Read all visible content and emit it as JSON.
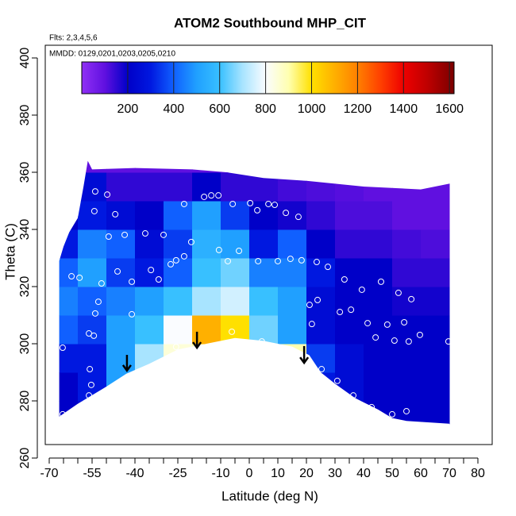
{
  "chart_data": {
    "type": "heatmap",
    "title": "ATOM2 Southbound MHP_CIT",
    "annotations": [
      "Flts: 2,3,4,5,6",
      "MMDD: 0129,0201,0203,0205,0210"
    ],
    "xlabel": "Latitude (deg N)",
    "ylabel": "Theta (C)",
    "xlim": [
      -70,
      80
    ],
    "ylim": [
      260,
      400
    ],
    "xticks": [
      -70,
      -55,
      -40,
      -25,
      -10,
      0,
      10,
      20,
      30,
      40,
      50,
      60,
      70,
      80
    ],
    "xminor_ticks": [
      -65,
      -60,
      -50,
      -45,
      -35,
      -30,
      -20,
      -15,
      -5,
      5,
      15,
      25,
      35,
      45,
      55,
      65,
      75
    ],
    "yticks": [
      260,
      280,
      300,
      320,
      340,
      360,
      380,
      400
    ],
    "clim": [
      0,
      1620
    ],
    "cticks": [
      200,
      400,
      600,
      800,
      1000,
      1200,
      1400,
      1600
    ],
    "colorscale": [
      [
        0,
        "#9030f5"
      ],
      [
        100,
        "#6010e0"
      ],
      [
        200,
        "#0000c8"
      ],
      [
        300,
        "#0018e0"
      ],
      [
        400,
        "#1060ff"
      ],
      [
        500,
        "#20a0ff"
      ],
      [
        600,
        "#38c0ff"
      ],
      [
        700,
        "#a8e4ff"
      ],
      [
        800,
        "#fafcff"
      ],
      [
        900,
        "#ffffb0"
      ],
      [
        1000,
        "#ffe000"
      ],
      [
        1100,
        "#ffb000"
      ],
      [
        1200,
        "#ff8000"
      ],
      [
        1300,
        "#ff4000"
      ],
      [
        1400,
        "#ee0000"
      ],
      [
        1500,
        "#c00000"
      ],
      [
        1620,
        "#7a0000"
      ]
    ],
    "x_edges": [
      -70,
      -60,
      -50,
      -40,
      -30,
      -20,
      -10,
      0,
      10,
      20,
      30,
      40,
      50,
      60,
      70
    ],
    "y_edges": [
      270,
      280,
      290,
      300,
      310,
      320,
      330,
      340,
      350,
      360,
      370
    ],
    "z": [
      [
        200,
        250,
        400,
        500,
        600,
        700,
        700,
        700,
        600,
        250,
        200,
        200,
        200,
        200
      ],
      [
        200,
        300,
        500,
        600,
        750,
        850,
        850,
        850,
        800,
        300,
        250,
        200,
        200,
        200
      ],
      [
        300,
        300,
        500,
        700,
        850,
        900,
        850,
        900,
        900,
        350,
        250,
        200,
        200,
        200
      ],
      [
        400,
        350,
        500,
        600,
        800,
        1100,
        1000,
        650,
        500,
        250,
        200,
        200,
        200,
        200
      ],
      [
        450,
        400,
        450,
        500,
        600,
        700,
        750,
        600,
        500,
        250,
        200,
        200,
        180,
        180
      ],
      [
        400,
        500,
        350,
        300,
        400,
        600,
        650,
        450,
        450,
        300,
        200,
        200,
        150,
        150
      ],
      [
        300,
        450,
        400,
        250,
        350,
        550,
        500,
        300,
        400,
        200,
        150,
        150,
        130,
        120
      ],
      [
        200,
        300,
        250,
        200,
        400,
        500,
        350,
        200,
        180,
        150,
        120,
        120,
        100,
        100
      ],
      [
        200,
        250,
        150,
        150,
        150,
        200,
        150,
        150,
        130,
        120,
        110,
        100,
        100,
        100
      ],
      [
        100,
        100,
        100,
        100,
        100,
        100,
        100,
        100,
        100,
        100,
        100,
        100,
        100,
        100
      ]
    ],
    "domain": [
      [
        -66.5,
        274.5
      ],
      [
        -66.5,
        329
      ],
      [
        -65,
        334
      ],
      [
        -63,
        339
      ],
      [
        -60,
        344
      ],
      [
        -58,
        355
      ],
      [
        -56.5,
        364
      ],
      [
        -55,
        361
      ],
      [
        -40,
        361.5
      ],
      [
        -20,
        361
      ],
      [
        -8,
        360
      ],
      [
        5,
        358
      ],
      [
        20,
        357
      ],
      [
        40,
        355
      ],
      [
        60,
        354
      ],
      [
        70,
        356
      ],
      [
        71,
        356
      ],
      [
        71,
        270
      ],
      [
        70,
        272
      ],
      [
        55,
        273
      ],
      [
        50,
        274
      ],
      [
        45,
        277
      ],
      [
        37,
        281
      ],
      [
        30,
        286
      ],
      [
        25,
        290
      ],
      [
        21,
        296
      ],
      [
        15,
        299
      ],
      [
        5,
        301
      ],
      [
        -5,
        302
      ],
      [
        -15,
        300
      ],
      [
        -25,
        298
      ],
      [
        -35,
        293
      ],
      [
        -43,
        289.5
      ],
      [
        -50,
        285
      ],
      [
        -60,
        279
      ]
    ],
    "points": {
      "color": "#ffffff",
      "x": [
        -53.9,
        -49.7,
        -54.2,
        -46.9,
        -65,
        -49.2,
        -43.6,
        -36.4,
        -30,
        -22.8,
        -15.8,
        -13.3,
        -10.8,
        -5.8,
        0.3,
        2.8,
        6.7,
        8.9,
        12.8,
        17.2,
        -10.6,
        -3.6,
        -7.5,
        3.1,
        10,
        14.4,
        18.3,
        23.6,
        27.5,
        33.3,
        46.1,
        39.4,
        52.2,
        56.7,
        21.1,
        23.9,
        31.7,
        35.6,
        41.4,
        48.3,
        54.2,
        59.7,
        50.8,
        44.2,
        55.8,
        69.7,
        21.9,
        25.3,
        30.8,
        36.4,
        42.8,
        50,
        55,
        -55.8,
        -55.3,
        -56.1,
        -65.3,
        -65.3,
        -56.1,
        -53.9,
        -52.8,
        -51.7,
        -59.4,
        -62.2,
        -46.1,
        -41.1,
        -34.4,
        -31.7,
        -27.5,
        -25.6,
        -22.8,
        -20.3,
        -41.1,
        -54.4,
        4.4,
        11.4,
        -6.1,
        -25.6
      ],
      "y": [
        353.3,
        352.2,
        346.4,
        345.3,
        337.5,
        337.5,
        338.1,
        338.6,
        338.1,
        348.9,
        351.4,
        351.9,
        351.9,
        348.9,
        349.2,
        346.7,
        348.9,
        348.6,
        345.8,
        344.4,
        332.8,
        332.5,
        328.9,
        328.9,
        328.9,
        329.7,
        329.2,
        328.6,
        326.9,
        322.5,
        321.7,
        318.9,
        317.8,
        315.6,
        313.6,
        315.3,
        311.1,
        311.9,
        307.2,
        306.7,
        307.5,
        303.1,
        301.1,
        302.2,
        300.8,
        300.8,
        306.9,
        291.1,
        287,
        281.9,
        277.8,
        275.3,
        276.4,
        291.1,
        285.6,
        281.9,
        275.3,
        298.6,
        303.6,
        310.6,
        314.7,
        321.1,
        323.1,
        323.6,
        325.3,
        321.7,
        325.8,
        322.5,
        327.8,
        329.2,
        330.6,
        335.6,
        310.3,
        302.8,
        300.8,
        298.6,
        304.2,
        298.9
      ]
    },
    "arrows": [
      {
        "x": -42.8,
        "y_from": 296.1,
        "y_to": 290.6
      },
      {
        "x": -18.3,
        "y_from": 304.2,
        "y_to": 298.6
      },
      {
        "x": 19.2,
        "y_from": 299.2,
        "y_to": 293.3
      }
    ]
  }
}
